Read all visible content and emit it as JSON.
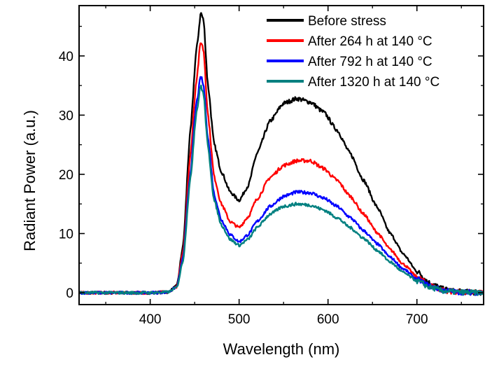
{
  "chart_data": {
    "type": "line",
    "title": "",
    "xlabel": "Wavelength (nm)",
    "ylabel": "Radiant Power (a.u.)",
    "xlim": [
      320,
      775
    ],
    "ylim": [
      -2,
      48.5
    ],
    "x_ticks": [
      400,
      500,
      600,
      700
    ],
    "y_ticks": [
      0,
      10,
      20,
      30,
      40
    ],
    "grid": false,
    "legend_position": "top-right",
    "series": [
      {
        "name": "Before stress",
        "color": "#000000",
        "points": [
          [
            320,
            0
          ],
          [
            400,
            0
          ],
          [
            420,
            0.1
          ],
          [
            430,
            1.2
          ],
          [
            437,
            8
          ],
          [
            445,
            27
          ],
          [
            452,
            41
          ],
          [
            457,
            47.3
          ],
          [
            460,
            46
          ],
          [
            465,
            35
          ],
          [
            472,
            25
          ],
          [
            480,
            20.5
          ],
          [
            490,
            17
          ],
          [
            500,
            15.6
          ],
          [
            510,
            18
          ],
          [
            520,
            23.5
          ],
          [
            535,
            29
          ],
          [
            550,
            32
          ],
          [
            565,
            32.8
          ],
          [
            580,
            32.2
          ],
          [
            595,
            30.5
          ],
          [
            610,
            27.5
          ],
          [
            625,
            23.5
          ],
          [
            640,
            19
          ],
          [
            655,
            14.5
          ],
          [
            670,
            10
          ],
          [
            685,
            6.5
          ],
          [
            700,
            3.6
          ],
          [
            715,
            1.6
          ],
          [
            730,
            0.6
          ],
          [
            745,
            0.2
          ],
          [
            775,
            0
          ]
        ]
      },
      {
        "name": "After 264 h at 140 °C",
        "color": "#ff0000",
        "points": [
          [
            320,
            0
          ],
          [
            400,
            0
          ],
          [
            420,
            0.1
          ],
          [
            430,
            1
          ],
          [
            437,
            7
          ],
          [
            445,
            23
          ],
          [
            452,
            36
          ],
          [
            457,
            42.5
          ],
          [
            460,
            41
          ],
          [
            465,
            30
          ],
          [
            472,
            19.5
          ],
          [
            480,
            15
          ],
          [
            490,
            12
          ],
          [
            500,
            11
          ],
          [
            510,
            12.8
          ],
          [
            520,
            15.8
          ],
          [
            535,
            19.5
          ],
          [
            550,
            21.5
          ],
          [
            565,
            22.3
          ],
          [
            580,
            22.3
          ],
          [
            595,
            21
          ],
          [
            610,
            19
          ],
          [
            625,
            16.3
          ],
          [
            640,
            13.3
          ],
          [
            655,
            10.2
          ],
          [
            670,
            7.3
          ],
          [
            685,
            4.8
          ],
          [
            700,
            2.7
          ],
          [
            715,
            1.2
          ],
          [
            730,
            0.4
          ],
          [
            745,
            0.1
          ],
          [
            775,
            0
          ]
        ]
      },
      {
        "name": "After 792 h at 140 °C",
        "color": "#0000ff",
        "points": [
          [
            320,
            0
          ],
          [
            400,
            0
          ],
          [
            420,
            0.1
          ],
          [
            430,
            1
          ],
          [
            437,
            6
          ],
          [
            445,
            20
          ],
          [
            452,
            32
          ],
          [
            457,
            36.5
          ],
          [
            460,
            35
          ],
          [
            465,
            26
          ],
          [
            472,
            16.5
          ],
          [
            480,
            12.3
          ],
          [
            490,
            9.8
          ],
          [
            500,
            8.6
          ],
          [
            510,
            9.8
          ],
          [
            520,
            12
          ],
          [
            535,
            14.6
          ],
          [
            550,
            16.3
          ],
          [
            565,
            17
          ],
          [
            580,
            16.9
          ],
          [
            595,
            16
          ],
          [
            610,
            14.6
          ],
          [
            625,
            12.7
          ],
          [
            640,
            10.5
          ],
          [
            655,
            8.3
          ],
          [
            670,
            6
          ],
          [
            685,
            4
          ],
          [
            700,
            2.3
          ],
          [
            715,
            1.1
          ],
          [
            730,
            0.4
          ],
          [
            745,
            0.1
          ],
          [
            775,
            0
          ]
        ]
      },
      {
        "name": "After 1320 h at 140 °C",
        "color": "#008080",
        "points": [
          [
            320,
            0
          ],
          [
            400,
            0
          ],
          [
            420,
            0.1
          ],
          [
            430,
            0.9
          ],
          [
            437,
            5.5
          ],
          [
            445,
            19
          ],
          [
            452,
            30.5
          ],
          [
            457,
            35
          ],
          [
            460,
            33.5
          ],
          [
            465,
            24.5
          ],
          [
            472,
            15.5
          ],
          [
            480,
            11.5
          ],
          [
            490,
            9
          ],
          [
            500,
            8
          ],
          [
            510,
            9
          ],
          [
            520,
            11
          ],
          [
            535,
            13.3
          ],
          [
            550,
            14.6
          ],
          [
            565,
            15
          ],
          [
            580,
            14.8
          ],
          [
            595,
            14
          ],
          [
            610,
            12.7
          ],
          [
            625,
            11
          ],
          [
            640,
            9.2
          ],
          [
            655,
            7.2
          ],
          [
            670,
            5.2
          ],
          [
            685,
            3.4
          ],
          [
            700,
            2
          ],
          [
            715,
            0.9
          ],
          [
            730,
            0.3
          ],
          [
            745,
            0.1
          ],
          [
            775,
            0
          ]
        ]
      }
    ]
  }
}
